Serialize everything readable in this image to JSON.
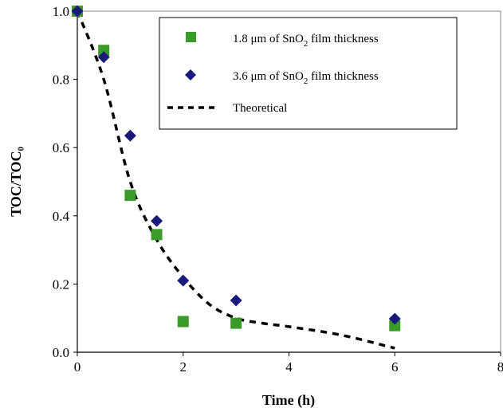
{
  "chart_data": {
    "type": "scatter",
    "xlabel": "Time (h)",
    "ylabel": "TOC/TOC₀",
    "xlim": [
      0,
      8
    ],
    "ylim": [
      0,
      1.0
    ],
    "xticks": [
      "0",
      "2",
      "4",
      "6",
      "8"
    ],
    "yticks": [
      "0.0",
      "0.2",
      "0.4",
      "0.6",
      "0.8",
      "1.0"
    ],
    "grid": false,
    "legend_position": "top-right",
    "series": [
      {
        "name_parts": [
          "1.8 μm of SnO",
          "2",
          " film thickness"
        ],
        "marker": "square",
        "color": "#3a9a2a",
        "x": [
          0,
          0.5,
          1,
          1.5,
          2,
          3,
          6
        ],
        "y": [
          1.0,
          0.885,
          0.46,
          0.345,
          0.09,
          0.085,
          0.078
        ]
      },
      {
        "name_parts": [
          "3.6 μm of SnO",
          "2",
          " film thickness"
        ],
        "marker": "diamond",
        "color": "#1a1a7a",
        "x": [
          0,
          0.5,
          1,
          1.5,
          2,
          3,
          6
        ],
        "y": [
          1.0,
          0.865,
          0.635,
          0.385,
          0.21,
          0.152,
          0.098
        ]
      },
      {
        "name": "Theoretical",
        "line": "dashed",
        "color": "#000000",
        "x": [
          0,
          0.5,
          1,
          1.5,
          2,
          2.5,
          3,
          3.5,
          4,
          5,
          6
        ],
        "y": [
          1.0,
          0.8,
          0.5,
          0.33,
          0.22,
          0.14,
          0.1,
          0.085,
          0.075,
          0.05,
          0.012
        ]
      }
    ]
  }
}
